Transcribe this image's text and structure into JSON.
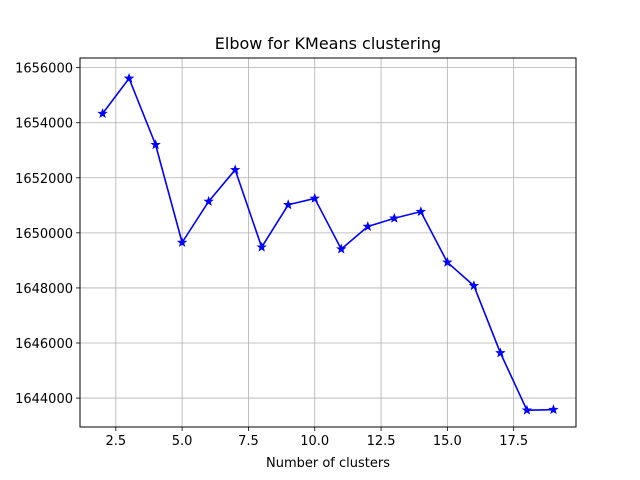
{
  "chart_data": {
    "type": "line",
    "title": "Elbow for KMeans clustering",
    "xlabel": "Number of clusters",
    "ylabel": "",
    "xlim": [
      1.15,
      19.85
    ],
    "ylim": [
      1642950,
      1656350
    ],
    "xticks": [
      2.5,
      5.0,
      7.5,
      10.0,
      12.5,
      15.0,
      17.5
    ],
    "xtick_labels": [
      "2.5",
      "5.0",
      "7.5",
      "10.0",
      "12.5",
      "15.0",
      "17.5"
    ],
    "yticks": [
      1644000,
      1646000,
      1648000,
      1650000,
      1652000,
      1654000,
      1656000
    ],
    "ytick_labels": [
      "1644000",
      "1646000",
      "1648000",
      "1650000",
      "1652000",
      "1654000",
      "1656000"
    ],
    "grid": true,
    "series": [
      {
        "color": "#0000ff",
        "marker": "star",
        "x": [
          2,
          3,
          4,
          5,
          6,
          7,
          8,
          9,
          10,
          11,
          12,
          13,
          14,
          15,
          16,
          17,
          18,
          19
        ],
        "y": [
          1654330,
          1655610,
          1653200,
          1649650,
          1651140,
          1652290,
          1649480,
          1651020,
          1651250,
          1649410,
          1650230,
          1650530,
          1650770,
          1648930,
          1648080,
          1645640,
          1643560,
          1643580
        ]
      }
    ]
  }
}
